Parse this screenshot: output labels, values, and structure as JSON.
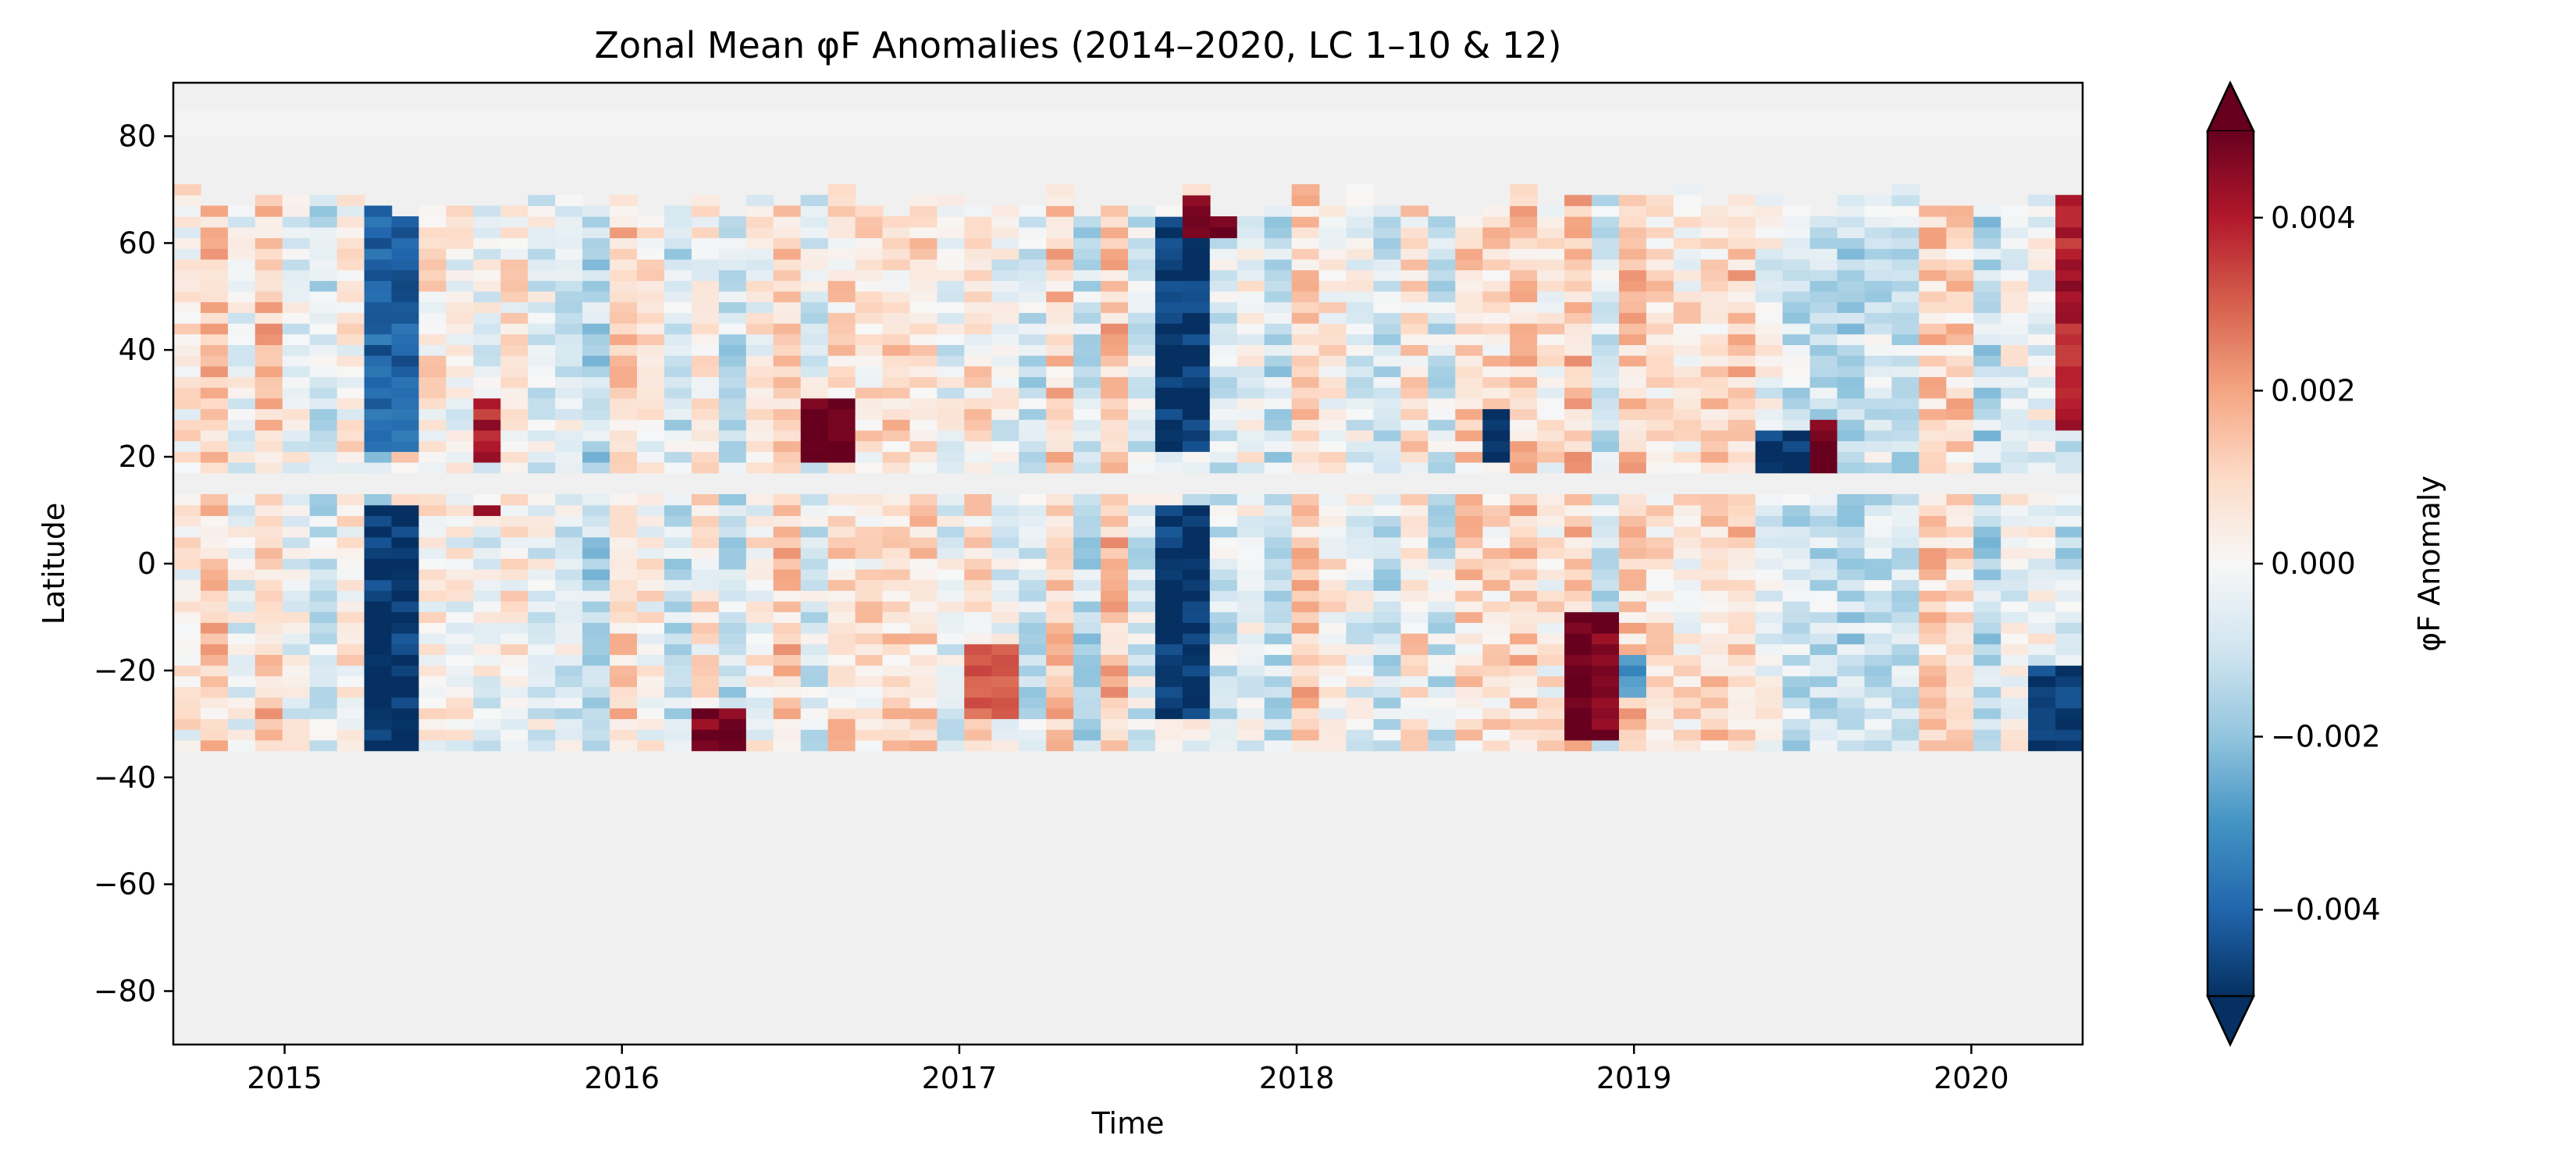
{
  "chart_data": {
    "type": "heatmap",
    "title": "Zonal Mean φF Anomalies (2014–2020, LC 1–10 & 12)",
    "xlabel": "Time",
    "ylabel": "Latitude",
    "xlim": [
      2014.67,
      2020.33
    ],
    "ylim": [
      -90,
      90
    ],
    "x_ticks": [
      2015,
      2016,
      2017,
      2018,
      2019,
      2020
    ],
    "x_tick_labels": [
      "2015",
      "2016",
      "2017",
      "2018",
      "2019",
      "2020"
    ],
    "y_ticks": [
      80,
      60,
      40,
      20,
      0,
      -20,
      -40,
      -60,
      -80
    ],
    "y_tick_labels": [
      "80",
      "60",
      "40",
      "20",
      "0",
      "−20",
      "−40",
      "−60",
      "−80"
    ],
    "colormap": "RdBu_r",
    "color_range": [
      -0.005,
      0.005
    ],
    "colorbar": {
      "label": "φF Anomaly",
      "ticks": [
        0.004,
        0.002,
        0.0,
        -0.002,
        -0.004
      ],
      "tick_labels": [
        "0.004",
        "0.002",
        "0.000",
        "−0.002",
        "−0.004"
      ],
      "extend": "both"
    },
    "data_extent": {
      "lat_min": -35,
      "lat_max": 70,
      "no_data_band": [
        12,
        16
      ]
    },
    "grid": false,
    "highlights": [
      {
        "time": 2015.29,
        "lat_range": [
          20,
          70
        ],
        "value": -0.004
      },
      {
        "time": 2015.29,
        "lat_range": [
          -35,
          10
        ],
        "value": -0.005
      },
      {
        "time": 2017.67,
        "lat_range": [
          20,
          65
        ],
        "value": -0.005
      },
      {
        "time": 2017.67,
        "lat_range": [
          -30,
          10
        ],
        "value": -0.005
      },
      {
        "time": 2017.75,
        "lat_range": [
          60,
          68
        ],
        "value": 0.005
      },
      {
        "time": 2015.6,
        "lat_range": [
          18,
          30
        ],
        "value": 0.004
      },
      {
        "time": 2016.6,
        "lat_range": [
          18,
          30
        ],
        "value": 0.005
      },
      {
        "time": 2016.3,
        "lat_range": [
          -35,
          -27
        ],
        "value": 0.005
      },
      {
        "time": 2018.88,
        "lat_range": [
          -33,
          -10
        ],
        "value": 0.005
      },
      {
        "time": 2018.6,
        "lat_range": [
          18,
          28
        ],
        "value": -0.005
      },
      {
        "time": 2019.55,
        "lat_range": [
          17,
          27
        ],
        "value": 0.005
      },
      {
        "time": 2019.45,
        "lat_range": [
          17,
          25
        ],
        "value": -0.005
      },
      {
        "time": 2020.25,
        "lat_range": [
          -35,
          -20
        ],
        "value": -0.005
      },
      {
        "time": 2020.28,
        "lat_range": [
          25,
          70
        ],
        "value": 0.004
      },
      {
        "time": 2015.6,
        "lat_range": [
          8,
          10
        ],
        "value": 0.005
      },
      {
        "time": 2017.1,
        "lat_range": [
          -30,
          -15
        ],
        "value": 0.003
      },
      {
        "time": 2019.0,
        "lat_range": [
          -25,
          -18
        ],
        "value": -0.003
      }
    ]
  }
}
